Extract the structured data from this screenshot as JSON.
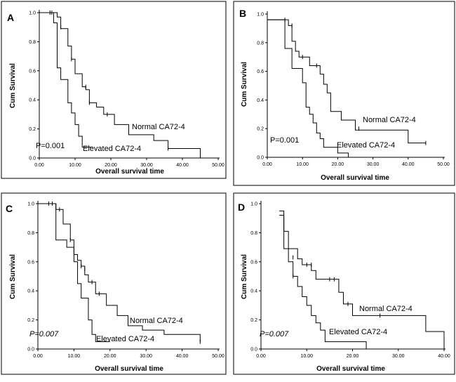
{
  "figure": {
    "chart_data": [
      {
        "panel": "A",
        "type": "line",
        "xlabel": "Overall survival time",
        "ylabel": "Cum Survival",
        "xlim": [
          0,
          50
        ],
        "ylim": [
          0,
          1
        ],
        "xticks": [
          "0.00",
          "10.00",
          "20.00",
          "30.00",
          "40.00",
          "50.00"
        ],
        "yticks": [
          "0.0",
          "0.2",
          "0.4",
          "0.6",
          "0.8",
          "1.0"
        ],
        "p_value": "P=0.001",
        "series": [
          {
            "name": "Normal CA72-4",
            "steps": [
              [
                0,
                1.0
              ],
              [
                5,
                0.97
              ],
              [
                6,
                0.89
              ],
              [
                8,
                0.77
              ],
              [
                9,
                0.68
              ],
              [
                10,
                0.58
              ],
              [
                12,
                0.49
              ],
              [
                13,
                0.47
              ],
              [
                14,
                0.38
              ],
              [
                16,
                0.35
              ],
              [
                18,
                0.3
              ],
              [
                21,
                0.23
              ],
              [
                25,
                0.16
              ],
              [
                32,
                0.12
              ],
              [
                36,
                0.065
              ],
              [
                45,
                0.0
              ]
            ],
            "censors": [
              [
                3,
                1.0
              ],
              [
                6,
                0.9
              ],
              [
                9,
                0.68
              ],
              [
                13,
                0.49
              ],
              [
                14,
                0.38
              ],
              [
                19,
                0.3
              ],
              [
                36,
                0.065
              ]
            ],
            "end_x": 45
          },
          {
            "name": "Elevated CA72-4",
            "steps": [
              [
                0,
                1.0
              ],
              [
                4,
                0.93
              ],
              [
                5,
                0.62
              ],
              [
                6,
                0.54
              ],
              [
                8,
                0.38
              ],
              [
                9,
                0.31
              ],
              [
                10,
                0.23
              ],
              [
                11,
                0.15
              ],
              [
                12,
                0.075
              ],
              [
                15,
                0.075
              ]
            ],
            "censors": [
              [
                3.5,
                1.0
              ]
            ],
            "end_x": 15
          }
        ]
      },
      {
        "panel": "B",
        "type": "line",
        "xlabel": "Overall survival time",
        "ylabel": "Cum Survival",
        "xlim": [
          0,
          50
        ],
        "ylim": [
          0,
          1
        ],
        "xticks": [
          "0.00",
          "10.00",
          "20.00",
          "30.00",
          "40.00",
          "50.00"
        ],
        "yticks": [
          "0.0",
          "0.2",
          "0.4",
          "0.6",
          "0.8",
          "1.0"
        ],
        "p_value": "P=0.001",
        "series": [
          {
            "name": "Normal CA72-4",
            "steps": [
              [
                0,
                0.96
              ],
              [
                6,
                0.92
              ],
              [
                7,
                0.81
              ],
              [
                8,
                0.74
              ],
              [
                9,
                0.7
              ],
              [
                12,
                0.64
              ],
              [
                15,
                0.58
              ],
              [
                16,
                0.51
              ],
              [
                17,
                0.45
              ],
              [
                18,
                0.32
              ],
              [
                21,
                0.26
              ],
              [
                25,
                0.19
              ],
              [
                40,
                0.1
              ],
              [
                45,
                0.1
              ]
            ],
            "censors": [
              [
                5,
                0.96
              ],
              [
                7,
                0.92
              ],
              [
                10,
                0.7
              ],
              [
                14,
                0.64
              ],
              [
                26,
                0.2
              ],
              [
                45,
                0.1
              ]
            ],
            "end_x": 45
          },
          {
            "name": "Elevated CA72-4",
            "steps": [
              [
                0,
                0.96
              ],
              [
                5,
                0.76
              ],
              [
                7,
                0.62
              ],
              [
                10,
                0.52
              ],
              [
                11,
                0.35
              ],
              [
                12,
                0.3
              ],
              [
                13,
                0.24
              ],
              [
                14,
                0.17
              ],
              [
                15,
                0.13
              ],
              [
                16,
                0.07
              ],
              [
                20,
                0.03
              ],
              [
                23,
                0.0
              ]
            ],
            "censors": [],
            "end_x": 23
          }
        ]
      },
      {
        "panel": "C",
        "type": "line",
        "xlabel": "Overall survival time",
        "ylabel": "Cum Survival",
        "xlim": [
          0,
          50
        ],
        "ylim": [
          0,
          1
        ],
        "xticks": [
          "0.00",
          "10.00",
          "20.00",
          "30.00",
          "40.00",
          "50.00"
        ],
        "yticks": [
          "0.0",
          "0.2",
          "0.4",
          "0.6",
          "0.8",
          "1.0"
        ],
        "p_value": "P=0.007",
        "series": [
          {
            "name": "Normal CA72-4",
            "steps": [
              [
                0,
                1.0
              ],
              [
                5,
                0.96
              ],
              [
                7,
                0.86
              ],
              [
                9,
                0.75
              ],
              [
                10,
                0.65
              ],
              [
                11,
                0.61
              ],
              [
                12,
                0.57
              ],
              [
                13,
                0.51
              ],
              [
                14,
                0.46
              ],
              [
                16,
                0.38
              ],
              [
                19,
                0.3
              ],
              [
                22,
                0.23
              ],
              [
                25,
                0.16
              ],
              [
                29,
                0.13
              ],
              [
                35,
                0.1
              ],
              [
                45,
                0.05
              ]
            ],
            "censors": [
              [
                3,
                1.0
              ],
              [
                4,
                1.0
              ],
              [
                6,
                0.96
              ],
              [
                9,
                0.75
              ],
              [
                12,
                0.57
              ],
              [
                13,
                0.55
              ],
              [
                15,
                0.46
              ],
              [
                17,
                0.38
              ],
              [
                45,
                0.05
              ]
            ],
            "end_x": 45
          },
          {
            "name": "Elevated CA72-4",
            "steps": [
              [
                0,
                1.0
              ],
              [
                5,
                0.75
              ],
              [
                8,
                0.7
              ],
              [
                10,
                0.6
              ],
              [
                11,
                0.45
              ],
              [
                12,
                0.35
              ],
              [
                14,
                0.2
              ],
              [
                15,
                0.1
              ],
              [
                16,
                0.05
              ],
              [
                20,
                0.05
              ]
            ],
            "censors": [],
            "end_x": 20
          }
        ]
      },
      {
        "panel": "D",
        "type": "line",
        "xlabel": "Overall survival time",
        "ylabel": "Cum Survival",
        "xlim": [
          0,
          40
        ],
        "ylim": [
          0,
          1
        ],
        "xticks": [
          "0.00",
          "10.00",
          "20.00",
          "30.00",
          "40.00"
        ],
        "yticks": [
          "0.0",
          "0.2",
          "0.4",
          "0.6",
          "0.8",
          "1.0"
        ],
        "p_value": "P=0.007",
        "series": [
          {
            "name": "Normal CA72-4",
            "steps": [
              [
                4,
                0.95
              ],
              [
                5,
                0.81
              ],
              [
                6,
                0.69
              ],
              [
                8,
                0.62
              ],
              [
                9,
                0.58
              ],
              [
                11,
                0.54
              ],
              [
                12,
                0.48
              ],
              [
                17,
                0.39
              ],
              [
                18,
                0.31
              ],
              [
                20,
                0.23
              ],
              [
                36,
                0.12
              ],
              [
                40,
                0.0
              ]
            ],
            "censors": [
              [
                7,
                0.63
              ],
              [
                10,
                0.58
              ],
              [
                11,
                0.58
              ],
              [
                15,
                0.48
              ],
              [
                16,
                0.48
              ],
              [
                19,
                0.31
              ],
              [
                26,
                0.23
              ]
            ],
            "end_x": 40
          },
          {
            "name": "Elevated CA72-4",
            "steps": [
              [
                4,
                0.92
              ],
              [
                5,
                0.69
              ],
              [
                6,
                0.6
              ],
              [
                7,
                0.5
              ],
              [
                8,
                0.43
              ],
              [
                9,
                0.36
              ],
              [
                10,
                0.3
              ],
              [
                11,
                0.23
              ],
              [
                12,
                0.18
              ],
              [
                13,
                0.13
              ],
              [
                14,
                0.05
              ],
              [
                23,
                0.0
              ]
            ],
            "censors": [
              [
                7,
                0.5
              ]
            ],
            "end_x": 23
          }
        ]
      }
    ]
  }
}
